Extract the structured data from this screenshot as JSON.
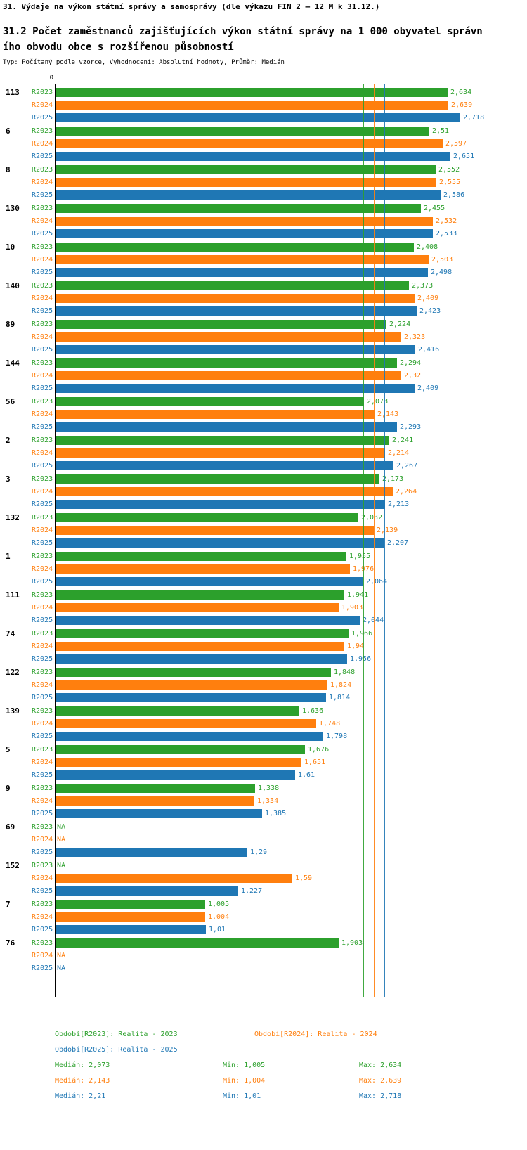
{
  "header": {
    "title": "31. Výdaje na výkon státní správy a samosprávy (dle výkazu FIN 2 – 12 M k 31.12.)",
    "subtitle": "31.2 Počet zaměstnanců zajišťujících výkon státní správy na 1 000 obyvatel správního obvodu obce s rozšířenou působností",
    "meta": "Typ: Počítaný podle vzorce, Vyhodnocení: Absolutní hodnoty, Průměr: Medián"
  },
  "colors": {
    "r2023": "#2ca02c",
    "r2024": "#ff7f0e",
    "r2025": "#1f77b4",
    "axis": "#000000"
  },
  "chart_data": {
    "type": "bar",
    "orientation": "horizontal",
    "x_axis": {
      "origin_label": "0",
      "xlim": [
        0,
        2.75
      ]
    },
    "series_labels": [
      "R2023",
      "R2024",
      "R2025"
    ],
    "groups": [
      {
        "label": "113",
        "values": [
          2.634,
          2.639,
          2.718
        ],
        "display": [
          "2,634",
          "2,639",
          "2,718"
        ]
      },
      {
        "label": "6",
        "values": [
          2.51,
          2.597,
          2.651
        ],
        "display": [
          "2,51",
          "2,597",
          "2,651"
        ]
      },
      {
        "label": "8",
        "values": [
          2.552,
          2.555,
          2.586
        ],
        "display": [
          "2,552",
          "2,555",
          "2,586"
        ]
      },
      {
        "label": "130",
        "values": [
          2.455,
          2.532,
          2.533
        ],
        "display": [
          "2,455",
          "2,532",
          "2,533"
        ]
      },
      {
        "label": "10",
        "values": [
          2.408,
          2.503,
          2.498
        ],
        "display": [
          "2,408",
          "2,503",
          "2,498"
        ]
      },
      {
        "label": "140",
        "values": [
          2.373,
          2.409,
          2.423
        ],
        "display": [
          "2,373",
          "2,409",
          "2,423"
        ]
      },
      {
        "label": "89",
        "values": [
          2.224,
          2.323,
          2.416
        ],
        "display": [
          "2,224",
          "2,323",
          "2,416"
        ]
      },
      {
        "label": "144",
        "values": [
          2.294,
          2.32,
          2.409
        ],
        "display": [
          "2,294",
          "2,32",
          "2,409"
        ]
      },
      {
        "label": "56",
        "values": [
          2.073,
          2.143,
          2.293
        ],
        "display": [
          "2,073",
          "2,143",
          "2,293"
        ]
      },
      {
        "label": "2",
        "values": [
          2.241,
          2.214,
          2.267
        ],
        "display": [
          "2,241",
          "2,214",
          "2,267"
        ]
      },
      {
        "label": "3",
        "values": [
          2.173,
          2.264,
          2.213
        ],
        "display": [
          "2,173",
          "2,264",
          "2,213"
        ]
      },
      {
        "label": "132",
        "values": [
          2.032,
          2.139,
          2.207
        ],
        "display": [
          "2,032",
          "2,139",
          "2,207"
        ]
      },
      {
        "label": "1",
        "values": [
          1.955,
          1.976,
          2.064
        ],
        "display": [
          "1,955",
          "1,976",
          "2,064"
        ]
      },
      {
        "label": "111",
        "values": [
          1.941,
          1.903,
          2.044
        ],
        "display": [
          "1,941",
          "1,903",
          "2,044"
        ]
      },
      {
        "label": "74",
        "values": [
          1.966,
          1.94,
          1.956
        ],
        "display": [
          "1,966",
          "1,94",
          "1,956"
        ]
      },
      {
        "label": "122",
        "values": [
          1.848,
          1.824,
          1.814
        ],
        "display": [
          "1,848",
          "1,824",
          "1,814"
        ]
      },
      {
        "label": "139",
        "values": [
          1.636,
          1.748,
          1.798
        ],
        "display": [
          "1,636",
          "1,748",
          "1,798"
        ]
      },
      {
        "label": "5",
        "values": [
          1.676,
          1.651,
          1.61
        ],
        "display": [
          "1,676",
          "1,651",
          "1,61"
        ]
      },
      {
        "label": "9",
        "values": [
          1.338,
          1.334,
          1.385
        ],
        "display": [
          "1,338",
          "1,334",
          "1,385"
        ]
      },
      {
        "label": "69",
        "values": [
          null,
          null,
          1.29
        ],
        "display": [
          "NA",
          "NA",
          "1,29"
        ]
      },
      {
        "label": "152",
        "values": [
          null,
          1.59,
          1.227
        ],
        "display": [
          "NA",
          "1,59",
          "1,227"
        ]
      },
      {
        "label": "7",
        "values": [
          1.005,
          1.004,
          1.01
        ],
        "display": [
          "1,005",
          "1,004",
          "1,01"
        ]
      },
      {
        "label": "76",
        "values": [
          1.903,
          null,
          null
        ],
        "display": [
          "1,903",
          "NA",
          "NA"
        ]
      }
    ],
    "median_lines": [
      2.073,
      2.143,
      2.21
    ]
  },
  "legend": {
    "items": [
      {
        "label": "Období[R2023]: Realita - 2023",
        "series": "r2023"
      },
      {
        "label": "Období[R2024]: Realita - 2024",
        "series": "r2024"
      },
      {
        "label": "Období[R2025]: Realita - 2025",
        "series": "r2025"
      }
    ]
  },
  "stats": [
    {
      "series": "r2023",
      "median": "Medián: 2,073",
      "min": "Min: 1,005",
      "max": "Max: 2,634"
    },
    {
      "series": "r2024",
      "median": "Medián: 2,143",
      "min": "Min: 1,004",
      "max": "Max: 2,639"
    },
    {
      "series": "r2025",
      "median": "Medián: 2,21",
      "min": "Min: 1,01",
      "max": "Max: 2,718"
    }
  ]
}
